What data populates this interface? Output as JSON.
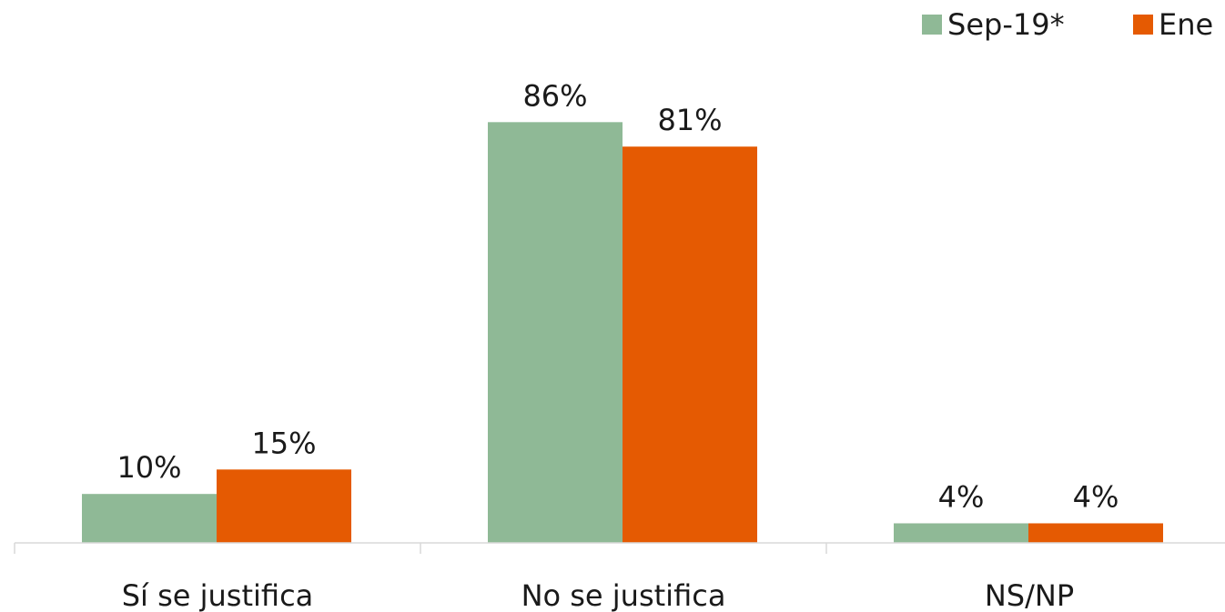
{
  "chart_data": {
    "type": "bar",
    "categories": [
      "Sí se justifica",
      "No se justifica",
      "NS/NP"
    ],
    "series": [
      {
        "name": "Sep-19*",
        "values": [
          10,
          86,
          4
        ],
        "labels": [
          "10%",
          "86%",
          "4%"
        ],
        "color": "#8fb996"
      },
      {
        "name": "Ene l",
        "values": [
          15,
          81,
          4
        ],
        "labels": [
          "15%",
          "81%",
          "4%"
        ],
        "color": "#e55a02"
      }
    ],
    "title": "",
    "xlabel": "",
    "ylabel": "",
    "ylim": [
      0,
      100
    ],
    "grid": false,
    "legend": "top-right",
    "axis_color": "#d9d9d9"
  }
}
